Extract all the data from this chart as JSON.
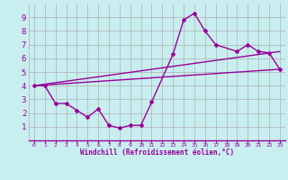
{
  "xlabel": "Windchill (Refroidissement éolien,°C)",
  "bg_color": "#c8eef0",
  "grid_color": "#b0b0b0",
  "line_color": "#990099",
  "xlim": [
    -0.5,
    23.5
  ],
  "ylim": [
    0,
    10
  ],
  "xticks": [
    0,
    1,
    2,
    3,
    4,
    5,
    6,
    7,
    8,
    9,
    10,
    11,
    12,
    13,
    14,
    15,
    16,
    17,
    18,
    19,
    20,
    21,
    22,
    23
  ],
  "yticks": [
    1,
    2,
    3,
    4,
    5,
    6,
    7,
    8,
    9
  ],
  "series1_x": [
    0,
    1,
    2,
    3,
    4,
    5,
    6,
    7,
    8,
    9,
    10,
    11,
    13,
    14,
    15,
    16,
    17,
    19,
    20,
    21,
    22,
    23
  ],
  "series1_y": [
    4.0,
    4.0,
    2.7,
    2.7,
    2.2,
    1.7,
    2.3,
    1.1,
    0.9,
    1.1,
    1.1,
    2.8,
    6.3,
    8.8,
    9.3,
    8.0,
    7.0,
    6.5,
    7.0,
    6.5,
    6.4,
    5.2
  ],
  "series2_x": [
    0,
    23
  ],
  "series2_y": [
    4.0,
    5.2
  ],
  "series3_x": [
    0,
    23
  ],
  "series3_y": [
    4.0,
    6.5
  ]
}
